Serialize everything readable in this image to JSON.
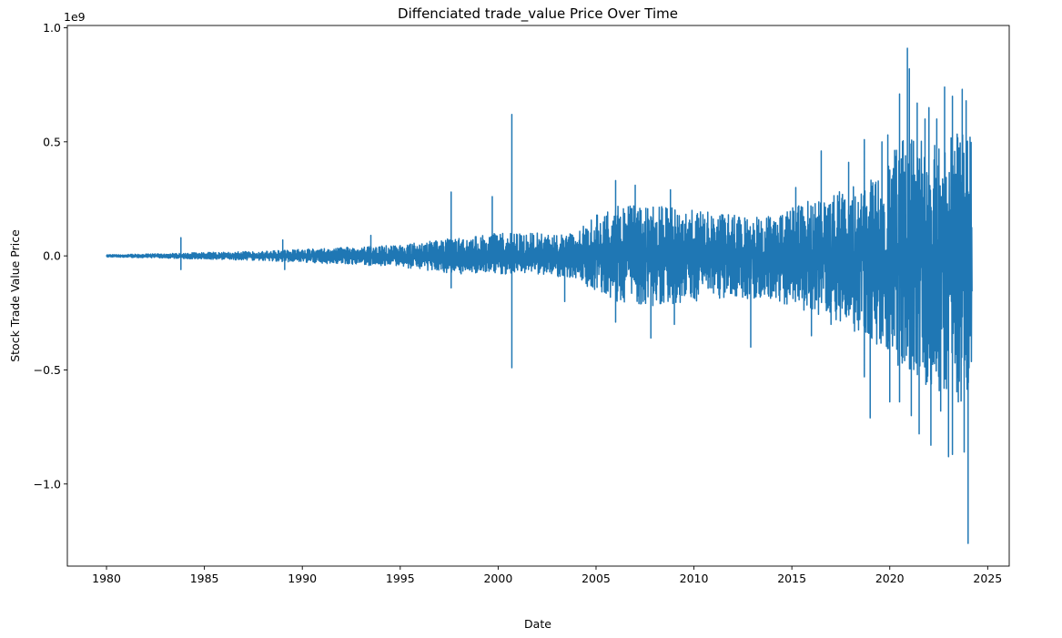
{
  "chart_data": {
    "type": "line",
    "title": "Diffenciated trade_value Price Over Time",
    "xlabel": "Date",
    "ylabel": "Stock Trade Value Price",
    "y_offset_label": "1e9",
    "y_scale_exponent": 9,
    "xlim": [
      1978,
      2026.1
    ],
    "ylim": [
      -1.36,
      1.01
    ],
    "x_ticks": [
      1980,
      1985,
      1990,
      1995,
      2000,
      2005,
      2010,
      2015,
      2020,
      2025
    ],
    "x_tick_labels": [
      "1980",
      "1985",
      "1990",
      "1995",
      "2000",
      "2005",
      "2010",
      "2015",
      "2020",
      "2025"
    ],
    "y_ticks": [
      -1.0,
      -0.5,
      0.0,
      0.5,
      1.0
    ],
    "y_tick_labels": [
      "−1.0",
      "−0.5",
      "0.0",
      "0.5",
      "1.0"
    ],
    "grid": false,
    "legend": "none",
    "series": [
      {
        "color": "#1f77b4",
        "x_range": [
          1980.0,
          2024.2
        ],
        "envelope": {
          "x": [
            1980,
            1983,
            1985,
            1988,
            1990,
            1993,
            1995,
            1998,
            2000,
            2002,
            2004,
            2004.8,
            2006,
            2008,
            2010,
            2012,
            2014,
            2016,
            2018,
            2019.5,
            2020.5,
            2021.5,
            2022.5,
            2023.5,
            2024.2
          ],
          "upper": [
            0.005,
            0.01,
            0.015,
            0.02,
            0.03,
            0.04,
            0.05,
            0.08,
            0.1,
            0.1,
            0.1,
            0.17,
            0.22,
            0.22,
            0.2,
            0.18,
            0.18,
            0.25,
            0.3,
            0.35,
            0.5,
            0.55,
            0.55,
            0.55,
            0.5
          ],
          "lower": [
            -0.005,
            -0.01,
            -0.015,
            -0.02,
            -0.03,
            -0.04,
            -0.05,
            -0.08,
            -0.08,
            -0.08,
            -0.1,
            -0.15,
            -0.2,
            -0.22,
            -0.2,
            -0.18,
            -0.2,
            -0.25,
            -0.3,
            -0.4,
            -0.5,
            -0.55,
            -0.6,
            -0.65,
            -0.6
          ]
        },
        "spikes": [
          {
            "x": 1983.8,
            "y": 0.08
          },
          {
            "x": 1983.8,
            "y": -0.06
          },
          {
            "x": 1989.0,
            "y": 0.07
          },
          {
            "x": 1989.1,
            "y": -0.06
          },
          {
            "x": 1993.5,
            "y": 0.09
          },
          {
            "x": 1997.6,
            "y": 0.28
          },
          {
            "x": 1997.6,
            "y": -0.14
          },
          {
            "x": 1999.7,
            "y": 0.26
          },
          {
            "x": 2000.7,
            "y": 0.62
          },
          {
            "x": 2000.7,
            "y": -0.49
          },
          {
            "x": 2003.4,
            "y": -0.2
          },
          {
            "x": 2006.0,
            "y": 0.33
          },
          {
            "x": 2006.0,
            "y": -0.29
          },
          {
            "x": 2007.0,
            "y": 0.31
          },
          {
            "x": 2007.8,
            "y": -0.36
          },
          {
            "x": 2008.8,
            "y": 0.29
          },
          {
            "x": 2009.0,
            "y": -0.3
          },
          {
            "x": 2012.9,
            "y": -0.4
          },
          {
            "x": 2015.2,
            "y": 0.3
          },
          {
            "x": 2016.5,
            "y": 0.46
          },
          {
            "x": 2016.0,
            "y": -0.35
          },
          {
            "x": 2017.0,
            "y": -0.3
          },
          {
            "x": 2017.9,
            "y": 0.41
          },
          {
            "x": 2018.2,
            "y": -0.33
          },
          {
            "x": 2018.7,
            "y": 0.51
          },
          {
            "x": 2018.7,
            "y": -0.53
          },
          {
            "x": 2019.0,
            "y": -0.71
          },
          {
            "x": 2019.6,
            "y": 0.5
          },
          {
            "x": 2019.9,
            "y": 0.53
          },
          {
            "x": 2020.0,
            "y": -0.64
          },
          {
            "x": 2020.2,
            "y": 0.29
          },
          {
            "x": 2020.5,
            "y": 0.71
          },
          {
            "x": 2020.5,
            "y": -0.64
          },
          {
            "x": 2020.9,
            "y": 0.91
          },
          {
            "x": 2021.0,
            "y": 0.82
          },
          {
            "x": 2021.1,
            "y": -0.7
          },
          {
            "x": 2021.4,
            "y": 0.67
          },
          {
            "x": 2021.5,
            "y": -0.78
          },
          {
            "x": 2021.8,
            "y": 0.6
          },
          {
            "x": 2022.0,
            "y": 0.65
          },
          {
            "x": 2022.1,
            "y": -0.83
          },
          {
            "x": 2022.4,
            "y": 0.6
          },
          {
            "x": 2022.6,
            "y": -0.68
          },
          {
            "x": 2022.8,
            "y": 0.74
          },
          {
            "x": 2023.0,
            "y": -0.88
          },
          {
            "x": 2023.2,
            "y": 0.7
          },
          {
            "x": 2023.2,
            "y": -0.87
          },
          {
            "x": 2023.5,
            "y": -0.64
          },
          {
            "x": 2023.7,
            "y": 0.73
          },
          {
            "x": 2023.8,
            "y": -0.86
          },
          {
            "x": 2023.9,
            "y": 0.68
          },
          {
            "x": 2024.0,
            "y": -1.26
          },
          {
            "x": 2024.1,
            "y": 0.52
          },
          {
            "x": 2024.1,
            "y": -0.35
          }
        ]
      }
    ]
  }
}
